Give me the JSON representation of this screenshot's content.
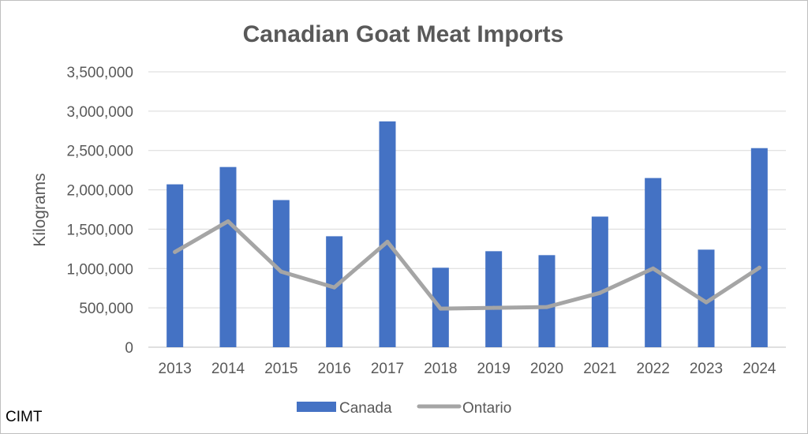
{
  "chart_data": {
    "type": "bar",
    "title": "Canadian Goat Meat Imports",
    "xlabel": "",
    "ylabel": "Kilograms",
    "categories": [
      "2013",
      "2014",
      "2015",
      "2016",
      "2017",
      "2018",
      "2019",
      "2020",
      "2021",
      "2022",
      "2023",
      "2024"
    ],
    "series": [
      {
        "name": "Canada",
        "type": "bar",
        "color": "#4472C4",
        "values": [
          2070000,
          2290000,
          1870000,
          1410000,
          2870000,
          1010000,
          1220000,
          1170000,
          1660000,
          2150000,
          1240000,
          2530000
        ]
      },
      {
        "name": "Ontario",
        "type": "line",
        "color": "#A5A5A5",
        "values": [
          1210000,
          1600000,
          960000,
          760000,
          1340000,
          490000,
          500000,
          510000,
          690000,
          1000000,
          570000,
          1010000
        ]
      }
    ],
    "ylim": [
      0,
      3500000
    ],
    "yticks": [
      "0",
      "500,000",
      "1,000,000",
      "1,500,000",
      "2,000,000",
      "2,500,000",
      "3,000,000",
      "3,500,000"
    ],
    "ytick_values": [
      0,
      500000,
      1000000,
      1500000,
      2000000,
      2500000,
      3000000,
      3500000
    ],
    "grid": true,
    "legend_position": "bottom"
  },
  "source_label": "CIMT"
}
